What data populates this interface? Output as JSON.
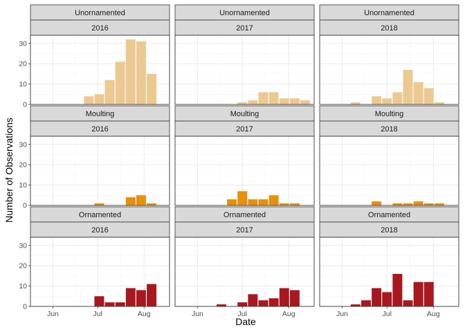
{
  "chart_data": {
    "type": "bar",
    "xlabel": "Date",
    "ylabel": "Number of Observations",
    "ylim": [
      0,
      34
    ],
    "y_ticks": [
      0,
      10,
      20,
      30
    ],
    "x_ticks": [
      "Jun",
      "Jul",
      "Aug"
    ],
    "x_tick_days": [
      152,
      182,
      213
    ],
    "x_domain_days": [
      137,
      230
    ],
    "grid": true,
    "legend": "none",
    "colors": {
      "Unornamented": "#EBC991",
      "Moulting": "#E8900A",
      "Ornamented": "#A8181F"
    },
    "facets": [
      {
        "group": "Unornamented",
        "year": "2016",
        "series": [
          {
            "x": "2016-06-24",
            "y": 4
          },
          {
            "x": "2016-07-01",
            "y": 5
          },
          {
            "x": "2016-07-08",
            "y": 12
          },
          {
            "x": "2016-07-15",
            "y": 21
          },
          {
            "x": "2016-07-22",
            "y": 32
          },
          {
            "x": "2016-07-29",
            "y": 31
          },
          {
            "x": "2016-08-05",
            "y": 15
          }
        ]
      },
      {
        "group": "Unornamented",
        "year": "2017",
        "series": [
          {
            "x": "2017-07-01",
            "y": 1
          },
          {
            "x": "2017-07-08",
            "y": 2
          },
          {
            "x": "2017-07-15",
            "y": 6
          },
          {
            "x": "2017-07-22",
            "y": 6
          },
          {
            "x": "2017-07-29",
            "y": 3
          },
          {
            "x": "2017-08-05",
            "y": 3
          },
          {
            "x": "2017-08-12",
            "y": 2
          }
        ]
      },
      {
        "group": "Unornamented",
        "year": "2018",
        "series": [
          {
            "x": "2018-06-10",
            "y": 1
          },
          {
            "x": "2018-06-24",
            "y": 4
          },
          {
            "x": "2018-07-01",
            "y": 3
          },
          {
            "x": "2018-07-08",
            "y": 6
          },
          {
            "x": "2018-07-15",
            "y": 17
          },
          {
            "x": "2018-07-22",
            "y": 11
          },
          {
            "x": "2018-07-29",
            "y": 8
          },
          {
            "x": "2018-08-05",
            "y": 1
          }
        ]
      },
      {
        "group": "Moulting",
        "year": "2016",
        "series": [
          {
            "x": "2016-07-01",
            "y": 1
          },
          {
            "x": "2016-07-22",
            "y": 4
          },
          {
            "x": "2016-07-29",
            "y": 5
          },
          {
            "x": "2016-08-05",
            "y": 1
          }
        ]
      },
      {
        "group": "Moulting",
        "year": "2017",
        "series": [
          {
            "x": "2017-06-24",
            "y": 3
          },
          {
            "x": "2017-07-01",
            "y": 7
          },
          {
            "x": "2017-07-08",
            "y": 3
          },
          {
            "x": "2017-07-15",
            "y": 3
          },
          {
            "x": "2017-07-22",
            "y": 5
          },
          {
            "x": "2017-07-29",
            "y": 1
          },
          {
            "x": "2017-08-05",
            "y": 1
          }
        ]
      },
      {
        "group": "Moulting",
        "year": "2018",
        "series": [
          {
            "x": "2018-06-24",
            "y": 2
          },
          {
            "x": "2018-07-08",
            "y": 1
          },
          {
            "x": "2018-07-15",
            "y": 1
          },
          {
            "x": "2018-07-22",
            "y": 2
          },
          {
            "x": "2018-07-29",
            "y": 1
          },
          {
            "x": "2018-08-05",
            "y": 1
          }
        ]
      },
      {
        "group": "Ornamented",
        "year": "2016",
        "series": [
          {
            "x": "2016-07-01",
            "y": 5
          },
          {
            "x": "2016-07-08",
            "y": 2
          },
          {
            "x": "2016-07-15",
            "y": 2
          },
          {
            "x": "2016-07-22",
            "y": 9
          },
          {
            "x": "2016-07-29",
            "y": 8
          },
          {
            "x": "2016-08-05",
            "y": 11
          }
        ]
      },
      {
        "group": "Ornamented",
        "year": "2017",
        "series": [
          {
            "x": "2017-06-17",
            "y": 1
          },
          {
            "x": "2017-07-01",
            "y": 2
          },
          {
            "x": "2017-07-08",
            "y": 6
          },
          {
            "x": "2017-07-15",
            "y": 3
          },
          {
            "x": "2017-07-22",
            "y": 4
          },
          {
            "x": "2017-07-29",
            "y": 9
          },
          {
            "x": "2017-08-05",
            "y": 8
          }
        ]
      },
      {
        "group": "Ornamented",
        "year": "2018",
        "series": [
          {
            "x": "2018-06-10",
            "y": 1
          },
          {
            "x": "2018-06-17",
            "y": 3
          },
          {
            "x": "2018-06-24",
            "y": 9
          },
          {
            "x": "2018-07-01",
            "y": 7
          },
          {
            "x": "2018-07-08",
            "y": 16
          },
          {
            "x": "2018-07-15",
            "y": 3
          },
          {
            "x": "2018-07-22",
            "y": 12
          },
          {
            "x": "2018-07-29",
            "y": 12
          }
        ]
      }
    ]
  }
}
